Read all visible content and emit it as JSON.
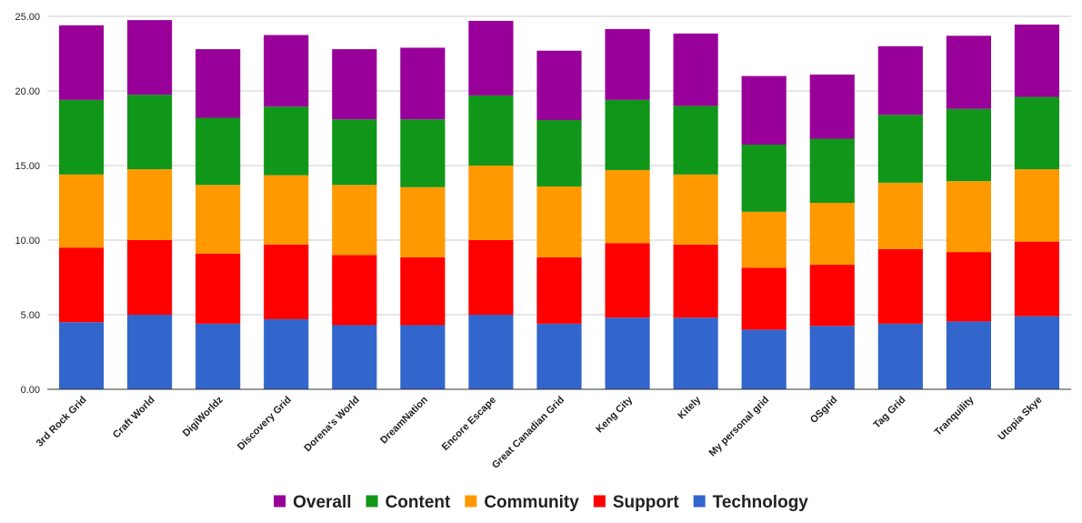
{
  "chart_data": {
    "type": "bar",
    "stacked": true,
    "title": "",
    "xlabel": "",
    "ylabel": "",
    "ylim": [
      0,
      25
    ],
    "y_ticks": [
      "0.00",
      "5.00",
      "10.00",
      "15.00",
      "20.00",
      "25.00"
    ],
    "grid": true,
    "legend_position": "bottom",
    "categories": [
      "3rd Rock Grid",
      "Craft World",
      "DigiWorldz",
      "Discovery Grid",
      "Dorena's World",
      "DreamNation",
      "Encore Escape",
      "Great Canadian Grid",
      "Keng City",
      "Kitely",
      "My personal grid",
      "OSgrid",
      "Tag Grid",
      "Tranquility",
      "Utopia Skye"
    ],
    "series": [
      {
        "name": "Technology",
        "color": "#3366cc",
        "values": [
          4.5,
          5.0,
          4.4,
          4.7,
          4.3,
          4.3,
          5.0,
          4.4,
          4.8,
          4.8,
          4.0,
          4.25,
          4.4,
          4.55,
          4.9
        ]
      },
      {
        "name": "Support",
        "color": "#ff0000",
        "values": [
          5.0,
          5.0,
          4.7,
          5.0,
          4.7,
          4.55,
          5.0,
          4.45,
          5.0,
          4.9,
          4.15,
          4.1,
          5.0,
          4.65,
          5.0
        ]
      },
      {
        "name": "Community",
        "color": "#ff9900",
        "values": [
          4.9,
          4.75,
          4.6,
          4.65,
          4.7,
          4.7,
          5.0,
          4.75,
          4.9,
          4.7,
          3.75,
          4.15,
          4.45,
          4.75,
          4.85
        ]
      },
      {
        "name": "Content",
        "color": "#109618",
        "values": [
          5.0,
          5.0,
          4.5,
          4.6,
          4.4,
          4.55,
          4.7,
          4.45,
          4.7,
          4.6,
          4.5,
          4.3,
          4.55,
          4.85,
          4.85
        ]
      },
      {
        "name": "Overall",
        "color": "#990099",
        "values": [
          5.0,
          5.0,
          4.6,
          4.8,
          4.7,
          4.8,
          5.0,
          4.65,
          4.75,
          4.85,
          4.6,
          4.3,
          4.6,
          4.9,
          4.85
        ]
      }
    ],
    "legend_order": [
      "Overall",
      "Content",
      "Community",
      "Support",
      "Technology"
    ]
  }
}
